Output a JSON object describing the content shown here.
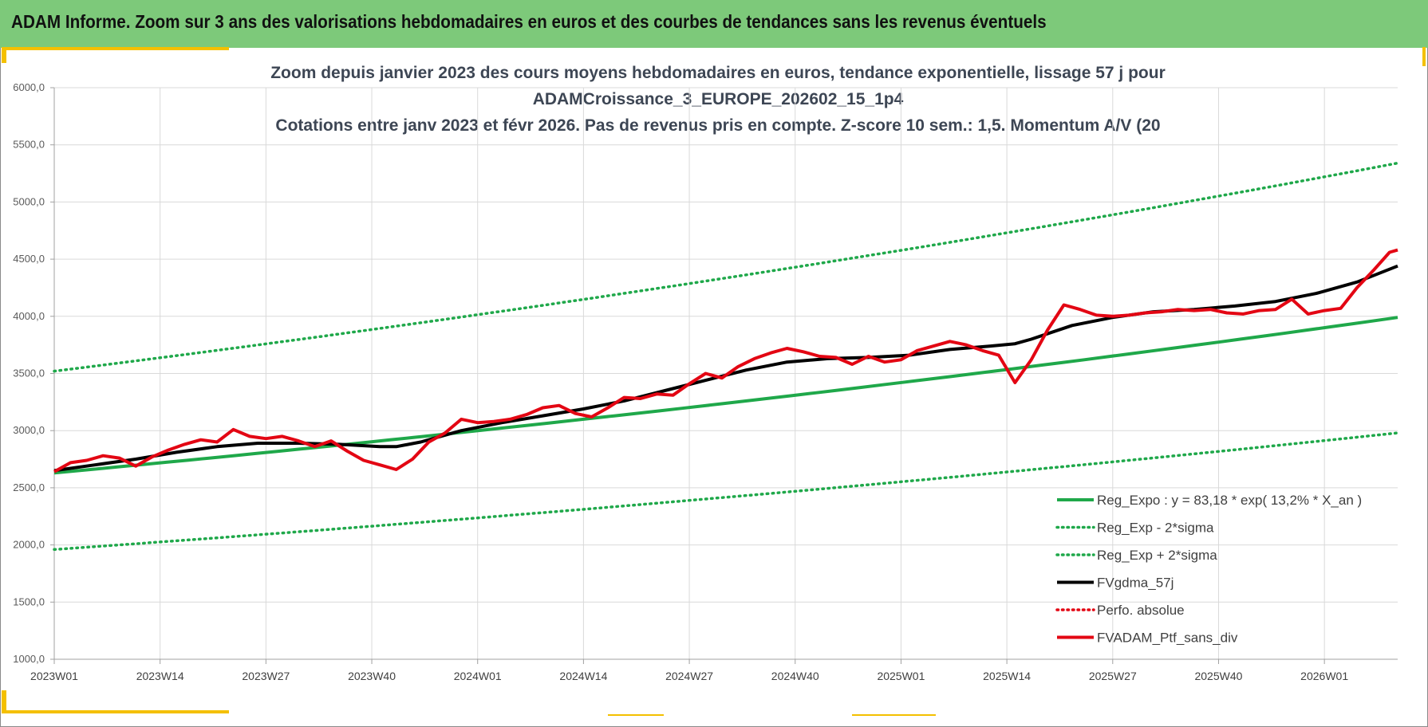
{
  "banner": {
    "title": "ADAM Informe. Zoom sur 3 ans des valorisations hebdomadaires en euros et des courbes de tendances sans les revenus éventuels"
  },
  "colors": {
    "banner_bg": "#7dc97a",
    "accent": "#f4c000",
    "reg_expo": "#1fa84a",
    "fvgdma": "#000000",
    "fvadam": "#e30613"
  },
  "chart_data": {
    "type": "line",
    "title_lines": [
      "Zoom depuis janvier 2023 des cours moyens hebdomadaires  en euros, tendance exponentielle, lissage 57 j pour",
      "ADAMCroissance_3_EUROPE_202602_15_1p4",
      "Cotations  entre janv 2023 et févr 2026. Pas de revenus pris en compte. Z-score 10 sem.: 1,5. Momentum A/V (20"
    ],
    "ylim": [
      1000,
      6000
    ],
    "y_ticks": [
      "1000,0",
      "1500,0",
      "2000,0",
      "2500,0",
      "3000,0",
      "3500,0",
      "4000,0",
      "4500,0",
      "5000,0",
      "5500,0",
      "6000,0"
    ],
    "x_ticks": [
      "2023W01",
      "2023W14",
      "2023W27",
      "2023W40",
      "2024W01",
      "2024W14",
      "2024W27",
      "2024W40",
      "2025W01",
      "2025W14",
      "2025W27",
      "2025W40",
      "2026W01"
    ],
    "x_range_weeks": [
      0,
      165
    ],
    "legend": [
      {
        "label": "Reg_Expo : y = 83,18 * exp( 13,2% *  X_an )",
        "style": "solid",
        "color": "#1fa84a"
      },
      {
        "label": "Reg_Exp - 2*sigma",
        "style": "dotted",
        "color": "#1fa84a"
      },
      {
        "label": "Reg_Exp + 2*sigma",
        "style": "dotted",
        "color": "#1fa84a"
      },
      {
        "label": "FVgdma_57j",
        "style": "solid",
        "color": "#000000"
      },
      {
        "label": "Perfo. absolue",
        "style": "dotted",
        "color": "#e30613"
      },
      {
        "label": "FVADAM_Ptf_sans_div",
        "style": "solid",
        "color": "#e30613"
      }
    ],
    "series": [
      {
        "name": "Reg_Expo",
        "start": 2630,
        "end": 3990
      },
      {
        "name": "Reg_Exp - 2*sigma",
        "start": 1960,
        "end": 2980
      },
      {
        "name": "Reg_Exp + 2*sigma",
        "start": 3520,
        "end": 5340
      },
      {
        "name": "FVgdma_57j",
        "x": [
          0,
          5,
          10,
          15,
          20,
          25,
          30,
          35,
          40,
          42,
          45,
          50,
          55,
          60,
          65,
          70,
          75,
          80,
          85,
          90,
          95,
          100,
          105,
          110,
          115,
          118,
          120,
          125,
          130,
          135,
          140,
          145,
          150,
          155,
          160,
          165
        ],
        "y": [
          2650,
          2700,
          2750,
          2810,
          2860,
          2890,
          2890,
          2880,
          2860,
          2860,
          2900,
          3000,
          3070,
          3130,
          3190,
          3260,
          3350,
          3440,
          3530,
          3600,
          3630,
          3640,
          3660,
          3710,
          3740,
          3760,
          3800,
          3920,
          3990,
          4040,
          4060,
          4090,
          4130,
          4200,
          4300,
          4440
        ]
      },
      {
        "name": "FVADAM_Ptf_sans_div",
        "x": [
          0,
          2,
          4,
          6,
          8,
          10,
          12,
          14,
          16,
          18,
          20,
          22,
          24,
          26,
          28,
          30,
          32,
          34,
          36,
          38,
          40,
          42,
          44,
          46,
          48,
          50,
          52,
          54,
          56,
          58,
          60,
          62,
          64,
          66,
          68,
          70,
          72,
          74,
          76,
          78,
          80,
          82,
          84,
          86,
          88,
          90,
          92,
          94,
          96,
          98,
          100,
          102,
          104,
          106,
          108,
          110,
          112,
          114,
          116,
          118,
          120,
          122,
          124,
          126,
          128,
          130,
          132,
          134,
          136,
          138,
          140,
          142,
          144,
          146,
          148,
          150,
          152,
          154,
          156,
          158,
          160,
          162,
          164,
          165
        ],
        "y": [
          2640,
          2720,
          2740,
          2780,
          2760,
          2690,
          2770,
          2830,
          2880,
          2920,
          2900,
          3010,
          2950,
          2930,
          2950,
          2910,
          2860,
          2910,
          2820,
          2740,
          2700,
          2660,
          2750,
          2900,
          2980,
          3100,
          3070,
          3080,
          3100,
          3140,
          3200,
          3220,
          3150,
          3120,
          3200,
          3290,
          3280,
          3320,
          3310,
          3410,
          3500,
          3460,
          3560,
          3630,
          3680,
          3720,
          3690,
          3650,
          3640,
          3580,
          3650,
          3600,
          3620,
          3700,
          3740,
          3780,
          3750,
          3700,
          3660,
          3420,
          3620,
          3880,
          4100,
          4060,
          4010,
          4000,
          4010,
          4030,
          4040,
          4060,
          4050,
          4060,
          4030,
          4020,
          4050,
          4060,
          4150,
          4020,
          4050,
          4070,
          4250,
          4400,
          4560,
          4580
        ]
      }
    ]
  }
}
